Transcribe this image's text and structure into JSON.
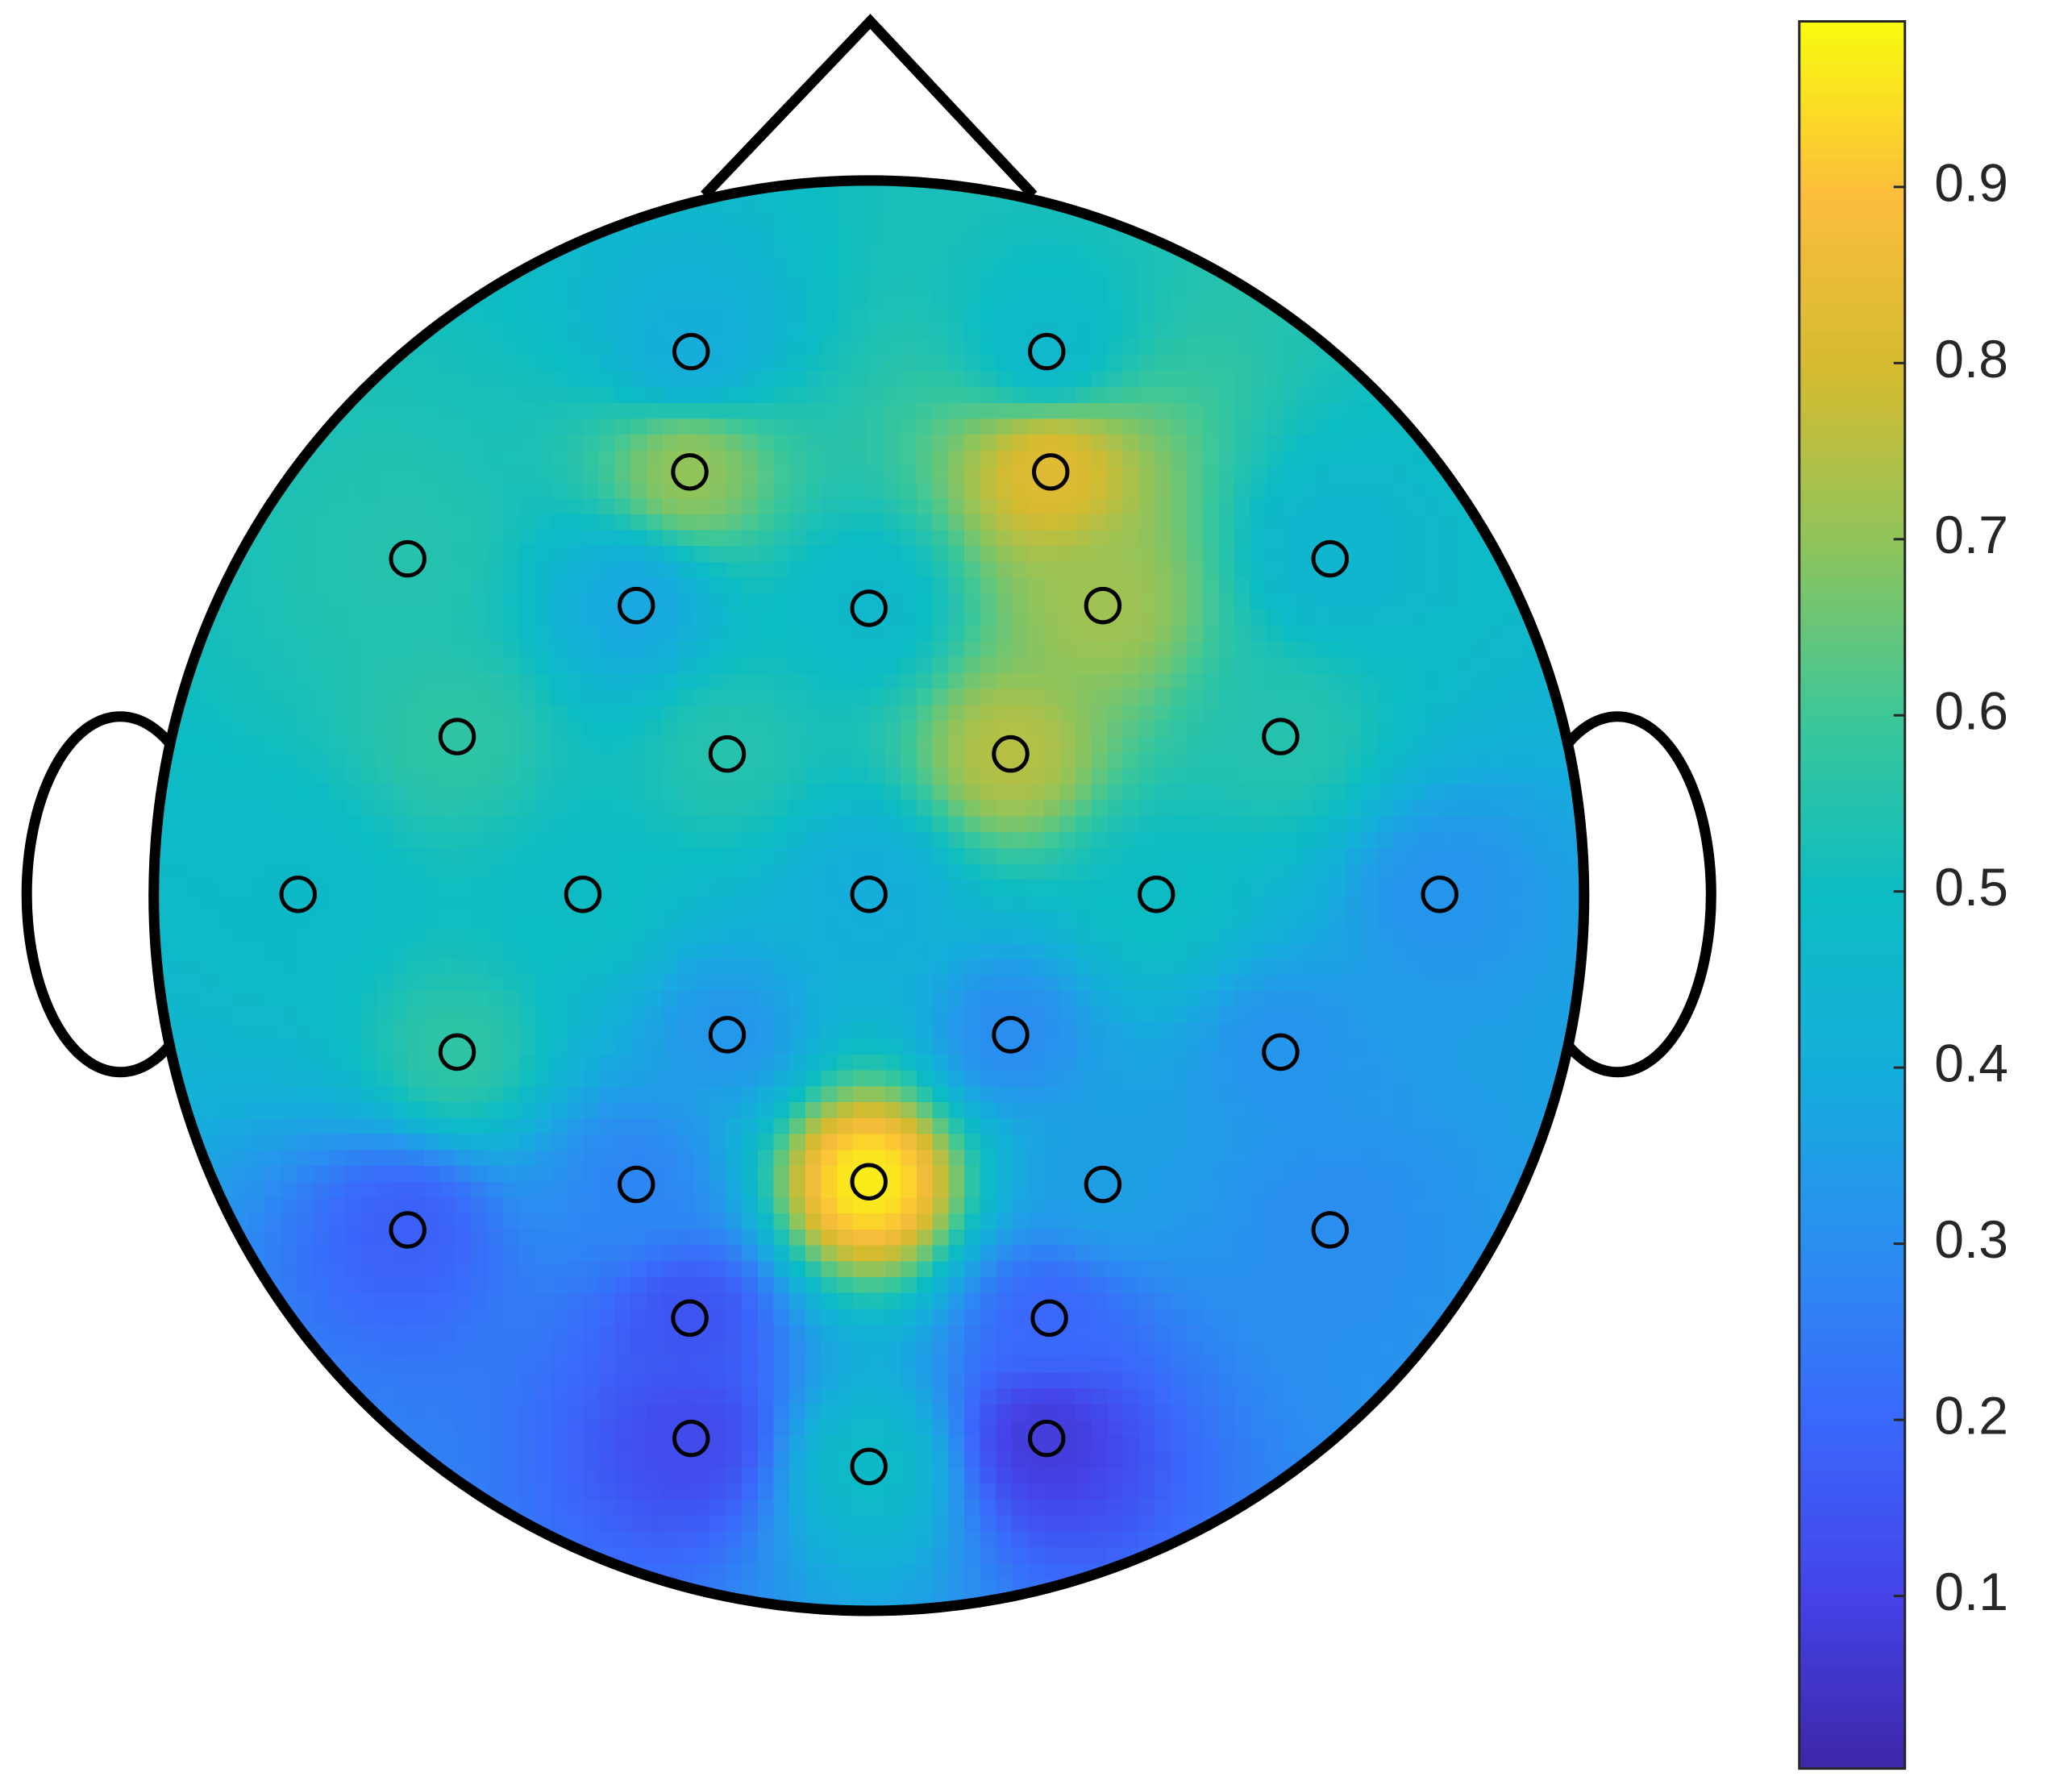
{
  "chart_data": {
    "type": "topoplot",
    "values": [
      0.4,
      0.47,
      0.7,
      0.82,
      0.55,
      0.38,
      0.47,
      0.72,
      0.45,
      0.57,
      0.55,
      0.75,
      0.55,
      0.48,
      0.5,
      0.4,
      0.5,
      0.32,
      0.57,
      0.33,
      0.3,
      0.32,
      0.28,
      0.97,
      0.35,
      0.18,
      0.3,
      0.15,
      0.2,
      0.12,
      0.08,
      0.48
    ],
    "colormap": [
      "#3e26a8",
      "#4443e8",
      "#3a68fb",
      "#2a8ef0",
      "#15aedb",
      "#0cbcc3",
      "#3bc79a",
      "#8ec45c",
      "#d4bb30",
      "#fcbd3c",
      "#f9fb0e"
    ],
    "ylim": [
      0.002,
      0.994
    ],
    "yticks": [
      0.1,
      0.2,
      0.3,
      0.4,
      0.5,
      0.6,
      0.7,
      0.8,
      0.9
    ]
  }
}
